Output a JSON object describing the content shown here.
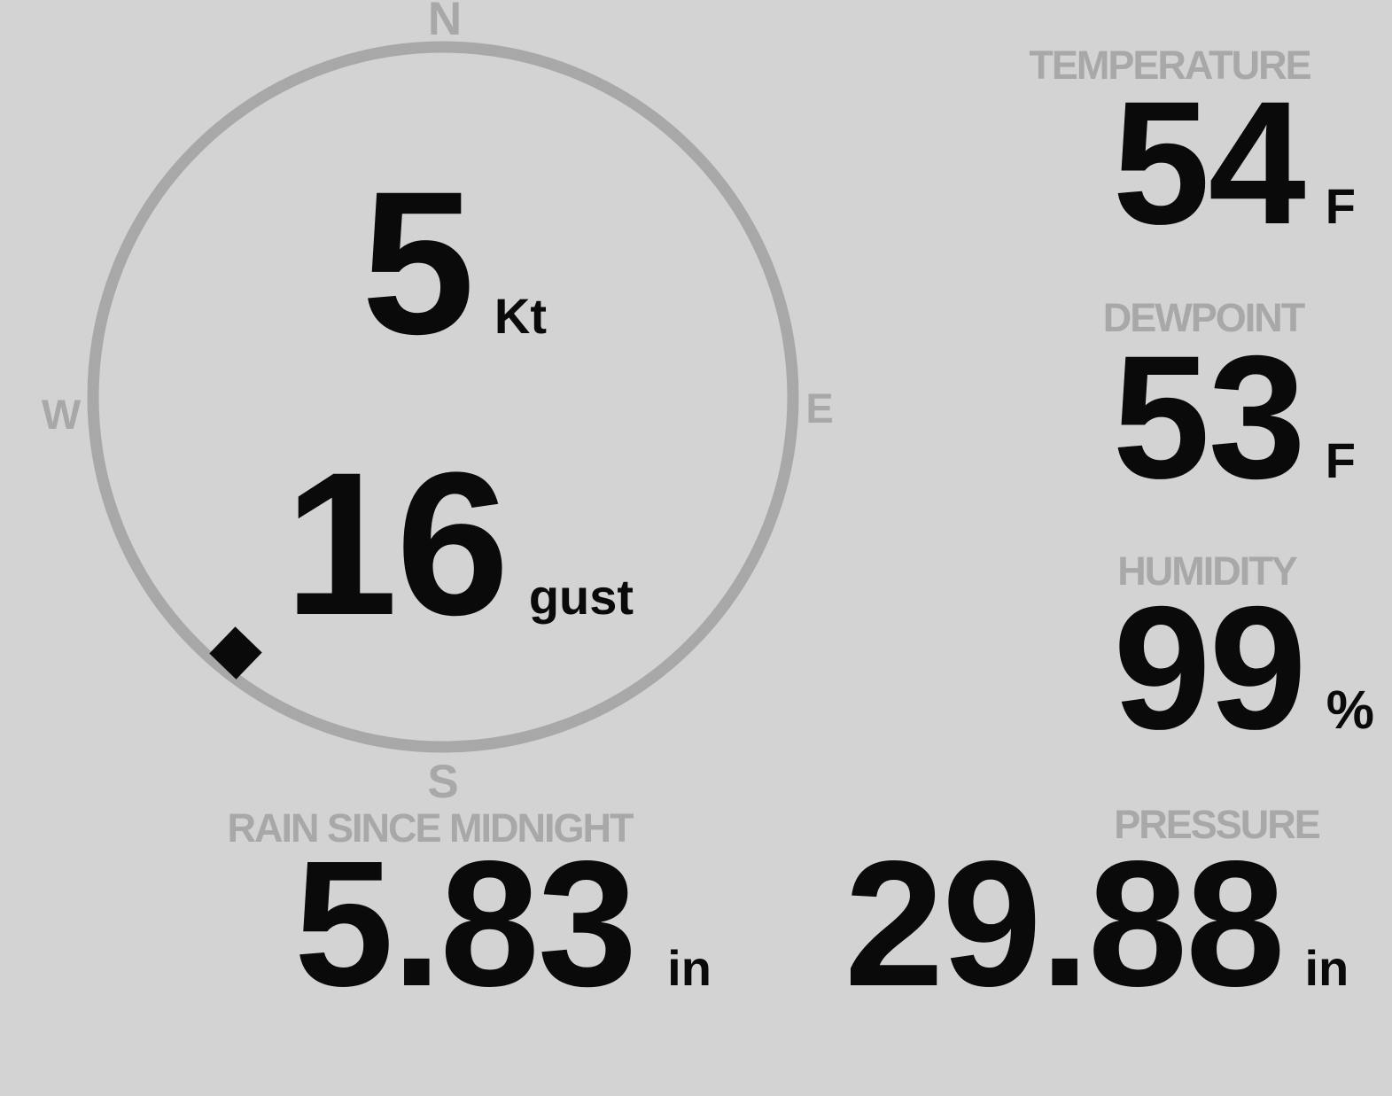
{
  "colors": {
    "background": "#d3d3d3",
    "muted_gray": "#a8a8a8",
    "ink_black": "#0a0a0a"
  },
  "compass": {
    "cardinals": {
      "north": "N",
      "east": "E",
      "south": "S",
      "west": "W"
    },
    "wind_speed": {
      "value": "5",
      "unit": "Kt"
    },
    "wind_gust": {
      "value": "16",
      "unit": "gust"
    },
    "wind_direction_deg": 219
  },
  "readings": {
    "temperature": {
      "label": "TEMPERATURE",
      "value": "54",
      "unit": "F"
    },
    "dewpoint": {
      "label": "DEWPOINT",
      "value": "53",
      "unit": "F"
    },
    "humidity": {
      "label": "HUMIDITY",
      "value": "99",
      "unit": "%"
    },
    "rain_since_midnight": {
      "label": "RAIN SINCE MIDNIGHT",
      "value": "5.83",
      "unit": "in"
    },
    "pressure": {
      "label": "PRESSURE",
      "value": "29.88",
      "unit": "in"
    }
  }
}
